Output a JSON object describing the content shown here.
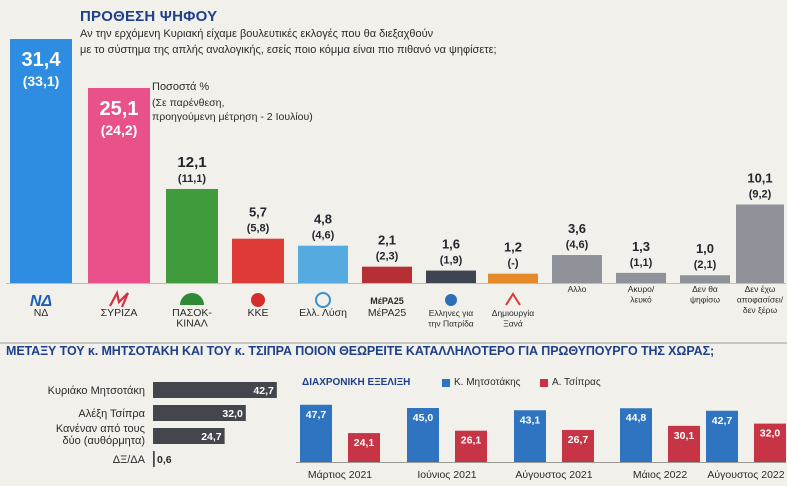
{
  "header": {
    "title": "ΠΡΟΘΕΣΗ ΨΗΦΟΥ",
    "question_line1": "Αν την ερχόμενη Κυριακή είχαμε βουλευτικές εκλογές που θα διεξαχθούν",
    "question_line2": "με το σύστημα της απλής αναλογικής, εσείς ποιο κόμμα είναι πιο πιθανό να ψηφίσετε;",
    "pct_label": "Ποσοστά %",
    "paren_line1": "(Σε παρένθεση,",
    "paren_line2": "προηγούμενη μέτρηση - 2 Ιουλίου)"
  },
  "colors": {
    "nd": "#2e8de0",
    "syriza": "#e8518a",
    "pasok": "#3f9b3c",
    "kke": "#de3a37",
    "ellysi": "#55abe0",
    "mera25": "#b52f35",
    "patrida": "#3f4452",
    "dimiourgia": "#e58a2a",
    "other": "#8f9299",
    "accent_blue": "#1e3f8a",
    "bar_dark": "#43464d",
    "bar_blue": "#2f74c0",
    "bar_red": "#c73446"
  },
  "chart_data": [
    {
      "type": "bar",
      "title": "ΠΡΟΘΕΣΗ ΨΗΦΟΥ",
      "categories": [
        "ΝΔ",
        "ΣΥΡΙΖΑ",
        "ΠΑΣΟΚ-ΚΙΝΑΛ",
        "ΚΚΕ",
        "Ελλ. Λύση",
        "ΜέΡΑ25",
        "Ελληνες για την Πατρίδα",
        "Δημιουργία Ξανά",
        "Αλλο",
        "Ακυρο/λευκό",
        "Δεν θα ψηφίσω",
        "Δεν έχω αποφασίσει/δεν ξέρω"
      ],
      "series": [
        {
          "name": "current",
          "values": [
            31.4,
            25.1,
            12.1,
            5.7,
            4.8,
            2.1,
            1.6,
            1.2,
            3.6,
            1.3,
            1.0,
            10.1
          ]
        },
        {
          "name": "previous",
          "values": [
            33.1,
            24.2,
            11.1,
            5.8,
            4.6,
            2.3,
            1.9,
            null,
            4.6,
            1.1,
            2.1,
            9.2
          ]
        }
      ],
      "value_labels": [
        "31,4",
        "25,1",
        "12,1",
        "5,7",
        "4,8",
        "2,1",
        "1,6",
        "1,2",
        "3,6",
        "1,3",
        "1,0",
        "10,1"
      ],
      "prev_labels": [
        "(33,1)",
        "(24,2)",
        "(11,1)",
        "(5,8)",
        "(4,6)",
        "(2,3)",
        "(1,9)",
        "(-)",
        "(4,6)",
        "(1,1)",
        "(2,1)",
        "(9,2)"
      ],
      "label_lines": [
        [
          "ΝΔ"
        ],
        [
          "ΣΥΡΙΖΑ"
        ],
        [
          "ΠΑΣΟΚ-",
          "ΚΙΝΑΛ"
        ],
        [
          "ΚΚΕ"
        ],
        [
          "Ελλ. Λύση"
        ],
        [
          "ΜέΡΑ25"
        ],
        [
          "Ελληνες για",
          "την Πατρίδα"
        ],
        [
          "Δημιουργία",
          "Ξανά"
        ],
        [
          "Αλλο"
        ],
        [
          "Ακυρο/",
          "λευκό"
        ],
        [
          "Δεν θα",
          "ψηφίσω"
        ],
        [
          "Δεν έχω",
          "αποφασίσει/",
          "δεν ξέρω"
        ]
      ]
    },
    {
      "type": "bar",
      "title": "ΜΕΤΑΞΥ ΤΟΥ κ. ΜΗΤΣΟΤΑΚΗ ΚΑΙ ΤΟΥ κ. ΤΣΙΠΡΑ ΠΟΙΟΝ ΘΕΩΡΕΙΤΕ ΚΑΤΑΛΛΗΛΟΤΕΡΟ ΓΙΑ ΠΡΩΘΥΠΟΥΡΓΟ ΤΗΣ ΧΩΡΑΣ;",
      "orientation": "horizontal",
      "categories": [
        "Κυριάκο Μητσοτάκη",
        "Αλέξη Τσίπρα",
        "Κανέναν από τους δύο (αυθόρμητα)",
        "ΔΞ/ΔΑ"
      ],
      "label_lines": [
        [
          "Κυριάκο Μητσοτάκη"
        ],
        [
          "Αλέξη Τσίπρα"
        ],
        [
          "Κανέναν από τους",
          "δύο (αυθόρμητα)"
        ],
        [
          "ΔΞ/ΔΑ"
        ]
      ],
      "values": [
        42.7,
        32.0,
        24.7,
        0.6
      ],
      "value_labels": [
        "42,7",
        "32,0",
        "24,7",
        "0,6"
      ]
    },
    {
      "type": "bar",
      "title": "ΔΙΑΧΡΟΝΙΚΗ ΕΞΕΛΙΞΗ",
      "categories": [
        "Μάρτιος 2021",
        "Ιούνιος 2021",
        "Αύγουστος 2021",
        "Μάιος 2022",
        "Αύγουστος 2022"
      ],
      "series": [
        {
          "name": "Κ. Μητσοτάκης",
          "values": [
            47.7,
            45.0,
            43.1,
            44.8,
            42.7
          ],
          "labels": [
            "47,7",
            "45,0",
            "43,1",
            "44,8",
            "42,7"
          ]
        },
        {
          "name": "Α. Τσίπρας",
          "values": [
            24.1,
            26.1,
            26.7,
            30.1,
            32.0
          ],
          "labels": [
            "24,1",
            "26,1",
            "26,7",
            "30,1",
            "32,0"
          ]
        }
      ]
    }
  ]
}
